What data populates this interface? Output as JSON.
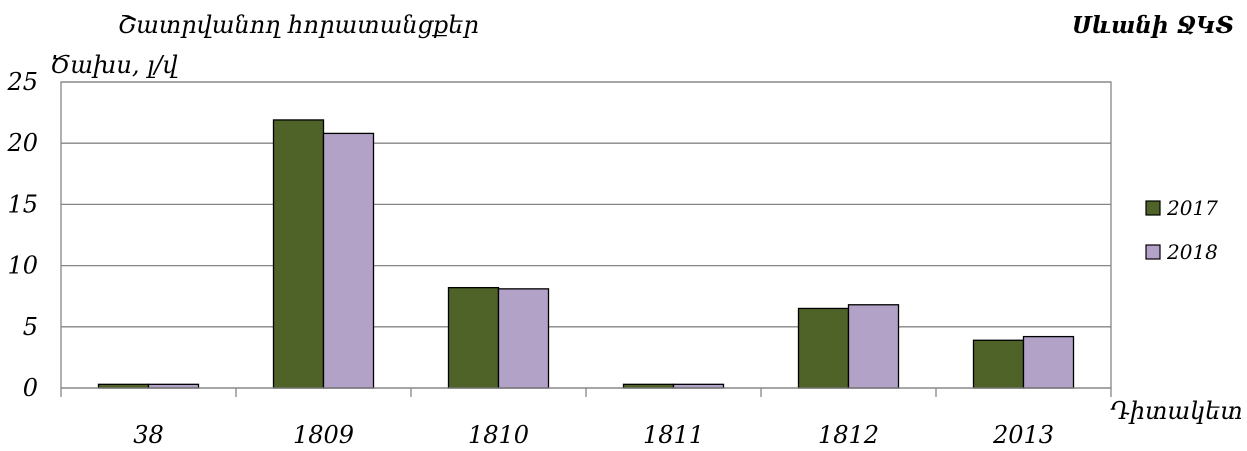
{
  "chart_data": {
    "type": "bar",
    "title": "Շատրվանող հորատանցքեր",
    "corner_label": "Սևանի ՋԿՏ",
    "ylabel": "Ծախս, լ/վ",
    "xlabel": "Դիտակետ",
    "categories": [
      "38",
      "1809",
      "1810",
      "1811",
      "1812",
      "2013"
    ],
    "series": [
      {
        "name": "2017",
        "color": "#4F6228",
        "values": [
          0.3,
          21.9,
          8.2,
          0.3,
          6.5,
          3.9
        ]
      },
      {
        "name": "2018",
        "color": "#B3A2C7",
        "values": [
          0.3,
          20.8,
          8.1,
          0.3,
          6.8,
          4.2
        ]
      }
    ],
    "ylim": [
      0,
      25
    ],
    "yticks": [
      "0",
      "5",
      "10",
      "15",
      "20",
      "25"
    ],
    "ytick_values": [
      0,
      5,
      10,
      15,
      20,
      25
    ],
    "grid": true,
    "legend_position": "right"
  }
}
